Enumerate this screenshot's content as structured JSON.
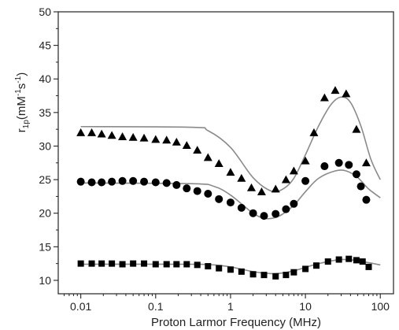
{
  "chart_data": {
    "type": "scatter",
    "xscale": "log",
    "xlabel": "Proton Larmor Frequency (MHz)",
    "ylabel": {
      "base": "r",
      "sub": "1p",
      "paren_open": "(mM",
      "sup1": "-1",
      "mid": "s",
      "sup2": "-1",
      "paren_close": ")"
    },
    "xlim": [
      0.005,
      150
    ],
    "ylim": [
      8,
      50
    ],
    "x_ticks": [
      0.01,
      0.1,
      1,
      10,
      100
    ],
    "x_tick_labels": [
      "0.01",
      "0.1",
      "1",
      "10",
      "100"
    ],
    "y_ticks": [
      10,
      15,
      20,
      25,
      30,
      35,
      40,
      45,
      50
    ],
    "y_tick_labels": [
      "10",
      "15",
      "20",
      "25",
      "30",
      "35",
      "40",
      "45",
      "50"
    ],
    "grid": false,
    "legend": "none",
    "series": [
      {
        "marker": "triangle",
        "points": [
          [
            0.01,
            32.0
          ],
          [
            0.014,
            32.0
          ],
          [
            0.019,
            31.8
          ],
          [
            0.026,
            31.6
          ],
          [
            0.036,
            31.4
          ],
          [
            0.05,
            31.3
          ],
          [
            0.07,
            31.2
          ],
          [
            0.1,
            31.0
          ],
          [
            0.14,
            30.9
          ],
          [
            0.19,
            30.6
          ],
          [
            0.26,
            30.1
          ],
          [
            0.36,
            29.4
          ],
          [
            0.5,
            28.3
          ],
          [
            0.7,
            27.4
          ],
          [
            1.0,
            26.1
          ],
          [
            1.4,
            25.2
          ],
          [
            1.9,
            23.8
          ],
          [
            2.6,
            23.2
          ],
          [
            4.0,
            23.6
          ],
          [
            5.5,
            25.0
          ],
          [
            7.0,
            26.3
          ],
          [
            10.0,
            27.8
          ],
          [
            13.0,
            32.0
          ],
          [
            18.0,
            37.2
          ],
          [
            25.0,
            38.3
          ],
          [
            35.0,
            37.8
          ],
          [
            48.0,
            32.5
          ],
          [
            65.0,
            27.5
          ]
        ],
        "fit": [
          [
            0.01,
            32.9
          ],
          [
            0.3,
            32.8
          ],
          [
            0.5,
            32.3
          ],
          [
            1.0,
            29.8
          ],
          [
            2.0,
            25.3
          ],
          [
            3.5,
            23.3
          ],
          [
            5.0,
            23.6
          ],
          [
            7.0,
            25.2
          ],
          [
            10.0,
            28.7
          ],
          [
            15.0,
            33.0
          ],
          [
            22.0,
            36.2
          ],
          [
            30.0,
            37.3
          ],
          [
            40.0,
            36.5
          ],
          [
            55.0,
            33.0
          ],
          [
            75.0,
            28.0
          ],
          [
            100.0,
            25.0
          ]
        ]
      },
      {
        "marker": "circle",
        "points": [
          [
            0.01,
            24.7
          ],
          [
            0.014,
            24.6
          ],
          [
            0.019,
            24.6
          ],
          [
            0.026,
            24.7
          ],
          [
            0.036,
            24.8
          ],
          [
            0.05,
            24.8
          ],
          [
            0.07,
            24.7
          ],
          [
            0.1,
            24.6
          ],
          [
            0.14,
            24.5
          ],
          [
            0.19,
            24.2
          ],
          [
            0.26,
            23.7
          ],
          [
            0.36,
            23.3
          ],
          [
            0.5,
            22.9
          ],
          [
            0.7,
            22.1
          ],
          [
            1.0,
            21.6
          ],
          [
            1.4,
            20.8
          ],
          [
            2.0,
            20.0
          ],
          [
            2.8,
            19.6
          ],
          [
            4.0,
            19.9
          ],
          [
            5.5,
            20.6
          ],
          [
            7.0,
            21.4
          ],
          [
            10.0,
            24.8
          ],
          [
            18.0,
            27.0
          ],
          [
            28.0,
            27.5
          ],
          [
            38.0,
            27.2
          ],
          [
            48.0,
            25.8
          ],
          [
            55.0,
            24.0
          ],
          [
            65.0,
            22.0
          ]
        ],
        "fit": [
          [
            0.01,
            24.5
          ],
          [
            0.3,
            24.4
          ],
          [
            0.6,
            24.0
          ],
          [
            1.0,
            22.7
          ],
          [
            2.0,
            20.0
          ],
          [
            3.0,
            19.2
          ],
          [
            4.5,
            19.6
          ],
          [
            7.0,
            21.2
          ],
          [
            10.0,
            23.2
          ],
          [
            15.0,
            25.2
          ],
          [
            25.0,
            26.3
          ],
          [
            35.0,
            26.3
          ],
          [
            50.0,
            25.3
          ],
          [
            70.0,
            23.6
          ],
          [
            100.0,
            22.3
          ]
        ]
      },
      {
        "marker": "square",
        "points": [
          [
            0.01,
            12.5
          ],
          [
            0.014,
            12.5
          ],
          [
            0.019,
            12.5
          ],
          [
            0.026,
            12.5
          ],
          [
            0.036,
            12.4
          ],
          [
            0.05,
            12.5
          ],
          [
            0.07,
            12.5
          ],
          [
            0.1,
            12.4
          ],
          [
            0.14,
            12.4
          ],
          [
            0.19,
            12.4
          ],
          [
            0.26,
            12.4
          ],
          [
            0.36,
            12.3
          ],
          [
            0.5,
            12.1
          ],
          [
            0.7,
            11.8
          ],
          [
            1.0,
            11.6
          ],
          [
            1.4,
            11.3
          ],
          [
            2.0,
            10.9
          ],
          [
            2.8,
            10.8
          ],
          [
            4.0,
            10.6
          ],
          [
            5.5,
            10.8
          ],
          [
            7.0,
            11.2
          ],
          [
            10.0,
            11.7
          ],
          [
            14.0,
            12.2
          ],
          [
            20.0,
            12.8
          ],
          [
            28.0,
            13.1
          ],
          [
            38.0,
            13.2
          ],
          [
            48.0,
            13.0
          ],
          [
            58.0,
            12.8
          ],
          [
            70.0,
            12.0
          ]
        ],
        "fit": [
          [
            0.01,
            12.4
          ],
          [
            0.3,
            12.4
          ],
          [
            0.6,
            12.3
          ],
          [
            1.0,
            12.0
          ],
          [
            2.0,
            11.3
          ],
          [
            3.5,
            11.0
          ],
          [
            5.0,
            11.1
          ],
          [
            8.0,
            11.6
          ],
          [
            12.0,
            12.2
          ],
          [
            20.0,
            12.8
          ],
          [
            30.0,
            13.1
          ],
          [
            45.0,
            13.0
          ],
          [
            65.0,
            12.7
          ],
          [
            100.0,
            12.3
          ]
        ]
      }
    ]
  }
}
